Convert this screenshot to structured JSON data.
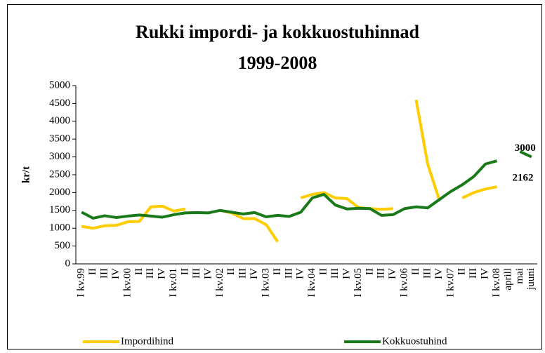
{
  "chart_data": {
    "type": "line",
    "title": "Rukki impordi- ja kokkuostuhinnad",
    "subtitle": "1999-2008",
    "y_label": "kr/t",
    "categories": [
      "I kv.99",
      "II",
      "III",
      "IV",
      "I kv.00",
      "II",
      "III",
      "IV",
      "I kv.01",
      "II",
      "III",
      "IV",
      "I kv.02",
      "II",
      "III",
      "IV",
      "I kv.03",
      "II",
      "III",
      "IV",
      "I kv.04",
      "II",
      "III",
      "IV",
      "I kv.05",
      "II",
      "III",
      "IV",
      "I kv.06",
      "II",
      "III",
      "IV",
      "I kv.07",
      "II",
      "III",
      "IV",
      "I kv.08",
      "aprill",
      "mai",
      "juuni"
    ],
    "series": [
      {
        "name": "Impordihind",
        "color": "#ffcc00",
        "values": [
          1050,
          1000,
          1070,
          1080,
          1180,
          1190,
          1600,
          1620,
          1480,
          1540,
          null,
          null,
          1500,
          1430,
          1270,
          1270,
          1100,
          620,
          null,
          1850,
          1950,
          2000,
          1850,
          1830,
          1580,
          1550,
          1530,
          1550,
          null,
          4600,
          2800,
          1800,
          null,
          1850,
          2000,
          2100,
          2162,
          null,
          null,
          null
        ]
      },
      {
        "name": "Kokkuostuhind",
        "color": "#1a7a1a",
        "values": [
          1450,
          1280,
          1350,
          1300,
          1340,
          1370,
          1340,
          1310,
          1380,
          1430,
          1440,
          1430,
          1500,
          1450,
          1400,
          1440,
          1320,
          1360,
          1330,
          1450,
          1850,
          1950,
          1650,
          1540,
          1560,
          1550,
          1360,
          1380,
          1550,
          1600,
          1570,
          1800,
          2030,
          2220,
          2450,
          2800,
          2890,
          null,
          3150,
          3000
        ]
      }
    ],
    "data_labels": [
      {
        "series": 0,
        "index": 36
      },
      {
        "series": 1,
        "index": 39
      }
    ],
    "ylim": [
      0,
      5000
    ],
    "yticks": [
      0,
      500,
      1000,
      1500,
      2000,
      2500,
      3000,
      3500,
      4000,
      4500,
      5000
    ],
    "legend": "bottom"
  }
}
